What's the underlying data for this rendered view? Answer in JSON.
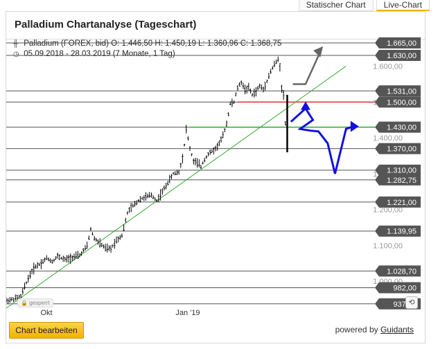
{
  "tabs": [
    {
      "label": "Statischer Chart",
      "active": false
    },
    {
      "label": "Live-Chart",
      "active": true
    }
  ],
  "header": {
    "title": "Palladium Chartanalyse (Tageschart)",
    "instrument_line": "Palladium (FOREX, bid)  O: 1.446,50  H: 1.450,19  L: 1.360,96  C: 1.368,75",
    "period_line": "05.09.2018 - 28.03.2019   (7 Monate, 1 Tag)"
  },
  "footer": {
    "edit_button": "Chart bearbeiten",
    "powered_prefix": "powered by",
    "powered_brand": "Guidants",
    "locked_badge": "gesperrt"
  },
  "colors": {
    "price": "#000000",
    "trendline": "#33aa33",
    "resistance": "#e03030",
    "support_green": "#33aa33",
    "level_line": "#555555",
    "forecast": "#1010e0",
    "alt_forecast": "#666666",
    "label_bg": "#555555",
    "axis_text": "#999999"
  },
  "chart_data": {
    "type": "line",
    "title": "Palladium Chartanalyse (Tageschart)",
    "xlabel": "",
    "ylabel": "",
    "x_ticks": [
      "Okt",
      "Jan '19"
    ],
    "y_ticks": [
      1600,
      1500,
      1400,
      1300,
      1200,
      1100,
      1000
    ],
    "y_tick_labels": [
      "1.600,00",
      "1.500,00",
      "1.400,00",
      "1.300,00",
      "1.200,00",
      "1.100,00",
      "1.000,00"
    ],
    "ylim": [
      925,
      1690
    ],
    "grid": false,
    "series": [
      {
        "values": [
          [
            0,
            946
          ],
          [
            4,
            950
          ],
          [
            8,
            958
          ],
          [
            10,
            984
          ],
          [
            12,
            1008
          ],
          [
            14,
            1028
          ],
          [
            16,
            1042
          ],
          [
            19,
            1050
          ],
          [
            22,
            1065
          ],
          [
            25,
            1055
          ],
          [
            28,
            1070
          ],
          [
            32,
            1060
          ],
          [
            36,
            1067
          ],
          [
            40,
            1072
          ],
          [
            44,
            1098
          ],
          [
            46,
            1145
          ],
          [
            48,
            1120
          ],
          [
            51,
            1105
          ],
          [
            54,
            1092
          ],
          [
            57,
            1090
          ],
          [
            60,
            1115
          ],
          [
            63,
            1128
          ],
          [
            66,
            1190
          ],
          [
            68,
            1205
          ],
          [
            70,
            1215
          ],
          [
            73,
            1230
          ],
          [
            76,
            1235
          ],
          [
            79,
            1240
          ],
          [
            82,
            1225
          ],
          [
            85,
            1250
          ],
          [
            88,
            1275
          ],
          [
            91,
            1300
          ],
          [
            94,
            1305
          ],
          [
            96,
            1345
          ],
          [
            97,
            1380
          ],
          [
            98,
            1425
          ],
          [
            100,
            1370
          ],
          [
            102,
            1335
          ],
          [
            104,
            1330
          ],
          [
            106,
            1320
          ],
          [
            108,
            1340
          ],
          [
            110,
            1355
          ],
          [
            112,
            1362
          ],
          [
            114,
            1370
          ],
          [
            116,
            1385
          ],
          [
            118,
            1405
          ],
          [
            120,
            1440
          ],
          [
            122,
            1495
          ],
          [
            124,
            1500
          ],
          [
            126,
            1540
          ],
          [
            128,
            1555
          ],
          [
            130,
            1535
          ],
          [
            132,
            1540
          ],
          [
            134,
            1520
          ],
          [
            136,
            1530
          ],
          [
            138,
            1545
          ],
          [
            140,
            1535
          ],
          [
            142,
            1560
          ],
          [
            144,
            1585
          ],
          [
            146,
            1605
          ],
          [
            148,
            1618
          ],
          [
            149,
            1600
          ],
          [
            150,
            1540
          ],
          [
            151,
            1520
          ],
          [
            152,
            1440
          ],
          [
            153,
            1415
          ],
          [
            154,
            1369
          ]
        ]
      }
    ],
    "levels": [
      {
        "value": 1665.0,
        "label": "1.665,00"
      },
      {
        "value": 1630.0,
        "label": "1.630,00"
      },
      {
        "value": 1531.0,
        "label": "1.531,00"
      },
      {
        "value": 1500.0,
        "label": "1.500,00"
      },
      {
        "value": 1430.0,
        "label": "1.430,00"
      },
      {
        "value": 1370.0,
        "label": "1.370,00"
      },
      {
        "value": 1310.0,
        "label": "1.310,00"
      },
      {
        "value": 1282.75,
        "label": "1.282,75"
      },
      {
        "value": 1221.0,
        "label": "1.221,00"
      },
      {
        "value": 1139.95,
        "label": "1.139,95"
      },
      {
        "value": 1028.7,
        "label": "1.028,70"
      },
      {
        "value": 982.0,
        "label": "982,00"
      },
      {
        "value": 937.0,
        "label": "937,00"
      }
    ],
    "trendline": [
      [
        0,
        925
      ],
      [
        185,
        1600
      ]
    ],
    "resistance_zone": {
      "value": 1500.0,
      "from_x": 126,
      "to_x": 190
    },
    "support_zone": {
      "value": 1430.0,
      "from_x": 100,
      "to_x": 190
    },
    "forecast_path": [
      [
        155,
        1445
      ],
      [
        163,
        1482
      ],
      [
        167,
        1450
      ],
      [
        160,
        1425
      ],
      [
        166,
        1420
      ],
      [
        170,
        1418
      ],
      [
        175,
        1385
      ],
      [
        179,
        1300
      ],
      [
        185,
        1425
      ],
      [
        189,
        1432
      ]
    ],
    "alt_forecast_path": [
      [
        156,
        1550
      ],
      [
        163,
        1550
      ],
      [
        171,
        1640
      ]
    ]
  }
}
